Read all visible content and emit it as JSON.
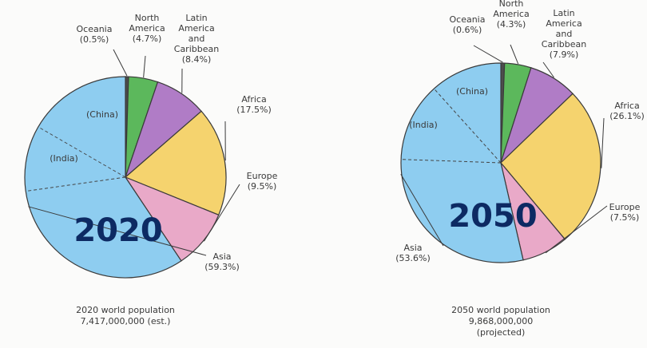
{
  "chart_data": [
    {
      "type": "pie",
      "title": "2020",
      "caption": [
        "2020 world population",
        "7,417,000,000 (est.)"
      ],
      "slices": [
        {
          "name": "Oceania",
          "label": [
            "Oceania",
            "(0.5%)"
          ],
          "value": 0.5,
          "color": "#4d4d4d"
        },
        {
          "name": "North America",
          "label": [
            "North",
            "America",
            "(4.7%)"
          ],
          "value": 4.7,
          "color": "#5cb85c"
        },
        {
          "name": "Latin America and Caribbean",
          "label": [
            "Latin",
            "America",
            "and",
            "Caribbean",
            "(8.4%)"
          ],
          "value": 8.4,
          "color": "#b07cc6"
        },
        {
          "name": "Africa",
          "label": [
            "Africa",
            "(17.5%)"
          ],
          "value": 17.5,
          "color": "#f5d36e"
        },
        {
          "name": "Europe",
          "label": [
            "Europe",
            "(9.5%)"
          ],
          "value": 9.5,
          "color": "#e9a9c8"
        },
        {
          "name": "Asia",
          "label": [
            "Asia",
            "(59.3%)"
          ],
          "value": 59.3,
          "color": "#8ecdf0"
        }
      ],
      "sublabels": [
        "(China)",
        "(India)"
      ]
    },
    {
      "type": "pie",
      "title": "2050",
      "caption": [
        "2050 world population",
        "9,868,000,000",
        "(projected)"
      ],
      "slices": [
        {
          "name": "Oceania",
          "label": [
            "Oceania",
            "(0.6%)"
          ],
          "value": 0.6,
          "color": "#4d4d4d"
        },
        {
          "name": "North America",
          "label": [
            "North",
            "America",
            "(4.3%)"
          ],
          "value": 4.3,
          "color": "#5cb85c"
        },
        {
          "name": "Latin America and Caribbean",
          "label": [
            "Latin",
            "America",
            "and",
            "Caribbean",
            "(7.9%)"
          ],
          "value": 7.9,
          "color": "#b07cc6"
        },
        {
          "name": "Africa",
          "label": [
            "Africa",
            "(26.1%)"
          ],
          "value": 26.1,
          "color": "#f5d36e"
        },
        {
          "name": "Europe",
          "label": [
            "Europe",
            "(7.5%)"
          ],
          "value": 7.5,
          "color": "#e9a9c8"
        },
        {
          "name": "Asia",
          "label": [
            "Asia",
            "(53.6%)"
          ],
          "value": 53.6,
          "color": "#8ecdf0"
        }
      ],
      "sublabels": [
        "(China)",
        "(India)"
      ]
    }
  ]
}
